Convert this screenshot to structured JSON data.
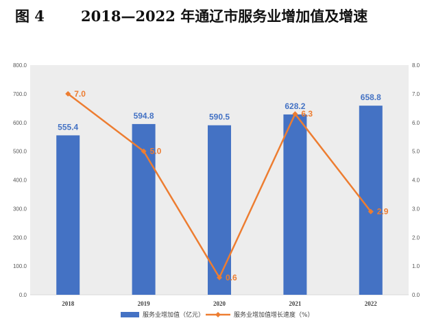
{
  "figure": {
    "number": "图 4",
    "title": "2018—2022 年通辽市服务业增加值及增速"
  },
  "chart_data": {
    "type": "bar",
    "categories": [
      "2018",
      "2019",
      "2020",
      "2021",
      "2022"
    ],
    "series": [
      {
        "name": "服务业增加值（亿元）",
        "type": "bar",
        "axis": "left",
        "values": [
          555.4,
          594.8,
          590.5,
          628.2,
          658.8
        ],
        "labels": [
          "555.4",
          "594.8",
          "590.5",
          "628.2",
          "658.8"
        ],
        "color": "#4472c4"
      },
      {
        "name": "服务业增加值增长速度（%）",
        "type": "line",
        "axis": "right",
        "values": [
          7.0,
          5.0,
          0.6,
          6.3,
          2.9
        ],
        "labels": [
          "7.0",
          "5.0",
          "0.6",
          "6.3",
          "2.9"
        ],
        "color": "#ed7d31"
      }
    ],
    "y_left": {
      "min": 0,
      "max": 800,
      "ticks": [
        "0.0",
        "100.0",
        "200.0",
        "300.0",
        "400.0",
        "500.0",
        "600.0",
        "700.0",
        "800.0"
      ]
    },
    "y_right": {
      "min": 0,
      "max": 8,
      "ticks": [
        "0.0",
        "1.0",
        "2.0",
        "3.0",
        "4.0",
        "5.0",
        "6.0",
        "7.0",
        "8.0"
      ]
    },
    "grid": false,
    "plot_background": "#ededed",
    "legend_position": "bottom"
  }
}
